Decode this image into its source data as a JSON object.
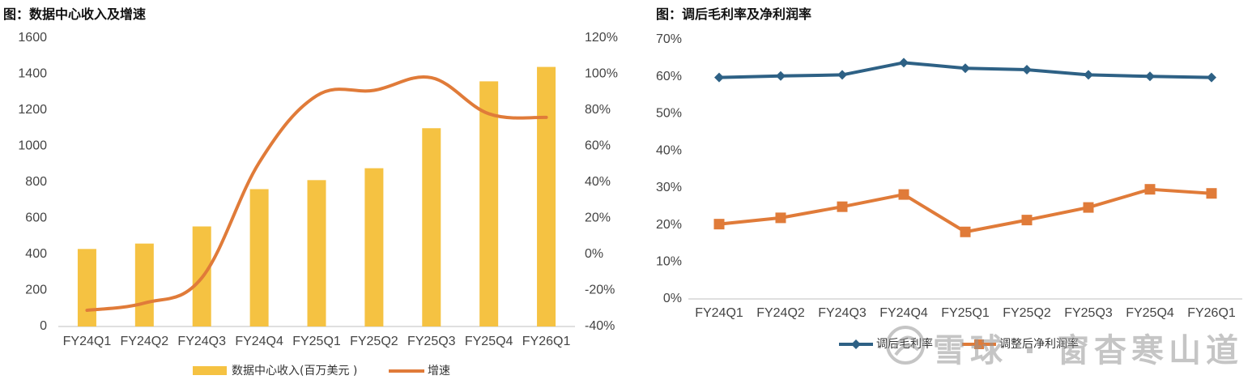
{
  "charts": {
    "left": {
      "title": "图：数据中心收入及增速"
    },
    "right": {
      "title": "图：调后毛利率及净利润率"
    }
  },
  "watermark": {
    "text": "雪球 · 窗杳寒山道"
  },
  "colors": {
    "bar": "#F5C242",
    "growth": "#E07B39",
    "gross": "#2E6185",
    "net": "#E07B39",
    "axis": "#BFBFBF"
  },
  "chart_data": [
    {
      "type": "bar",
      "title": "图：数据中心收入及增速",
      "categories": [
        "FY24Q1",
        "FY24Q2",
        "FY24Q3",
        "FY24Q4",
        "FY25Q1",
        "FY25Q2",
        "FY25Q3",
        "FY25Q4",
        "FY26Q1"
      ],
      "series": [
        {
          "name": "数据中心收入(百万美元 )",
          "type": "bar",
          "axis": "left",
          "values": [
            430,
            460,
            555,
            762,
            812,
            878,
            1100,
            1360,
            1440
          ]
        },
        {
          "name": "增速",
          "type": "line",
          "axis": "right",
          "smooth": true,
          "values": [
            -31,
            -27,
            -13,
            51,
            88,
            91,
            98,
            78,
            76
          ]
        }
      ],
      "ylim_left": [
        0,
        1600
      ],
      "yticks_left": [
        "0",
        "200",
        "400",
        "600",
        "800",
        "1000",
        "1200",
        "1400",
        "1600"
      ],
      "ylim_right": [
        -40,
        120
      ],
      "yticks_right": [
        "-40%",
        "-20%",
        "0%",
        "20%",
        "40%",
        "60%",
        "80%",
        "100%",
        "120%"
      ],
      "grid": false,
      "legend_position": "bottom"
    },
    {
      "type": "line",
      "title": "图：调后毛利率及净利润率",
      "categories": [
        "FY24Q1",
        "FY24Q2",
        "FY24Q3",
        "FY24Q4",
        "FY25Q1",
        "FY25Q2",
        "FY25Q3",
        "FY25Q4",
        "FY26Q1"
      ],
      "series": [
        {
          "name": "调后毛利率",
          "marker": "diamond",
          "values": [
            59.8,
            60.2,
            60.5,
            63.8,
            62.3,
            61.9,
            60.5,
            60.1,
            59.8
          ]
        },
        {
          "name": "调整后净利润率",
          "marker": "square",
          "values": [
            20.2,
            21.9,
            24.9,
            28.2,
            18.1,
            21.3,
            24.7,
            29.6,
            28.5
          ]
        }
      ],
      "ylim": [
        0,
        70
      ],
      "yticks": [
        "0%",
        "10%",
        "20%",
        "30%",
        "40%",
        "50%",
        "60%",
        "70%"
      ],
      "grid": false,
      "legend_position": "bottom"
    }
  ]
}
